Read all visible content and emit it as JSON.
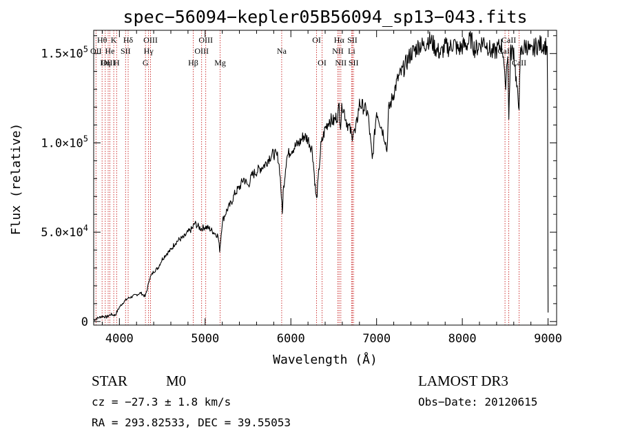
{
  "chart_data": {
    "type": "line",
    "title": "spec−56094−kepler05B56094_sp13−043.fits",
    "xlabel": "Wavelength (Å)",
    "ylabel": "Flux (relative)",
    "xlim": [
      3700,
      9100
    ],
    "ylim": [
      -2000,
      163000
    ],
    "x_ticks": [
      {
        "value": 4000,
        "label": "4000"
      },
      {
        "value": 5000,
        "label": "5000"
      },
      {
        "value": 6000,
        "label": "6000"
      },
      {
        "value": 7000,
        "label": "7000"
      },
      {
        "value": 8000,
        "label": "8000"
      },
      {
        "value": 9000,
        "label": "9000"
      }
    ],
    "y_ticks": [
      {
        "value": 0,
        "mant": "0",
        "exp": ""
      },
      {
        "value": 50000,
        "mant": "5.0×10",
        "exp": "4"
      },
      {
        "value": 100000,
        "mant": "1.0×10",
        "exp": "5"
      },
      {
        "value": 150000,
        "mant": "1.5×10",
        "exp": "5"
      }
    ],
    "series": [
      {
        "name": "flux",
        "color": "#000000",
        "x": [
          3700,
          3750,
          3800,
          3850,
          3900,
          3950,
          4000,
          4050,
          4100,
          4150,
          4200,
          4250,
          4300,
          4330,
          4350,
          4400,
          4450,
          4500,
          4550,
          4600,
          4650,
          4700,
          4750,
          4800,
          4850,
          4880,
          4900,
          4950,
          5000,
          5050,
          5100,
          5150,
          5170,
          5180,
          5200,
          5250,
          5300,
          5350,
          5400,
          5450,
          5500,
          5550,
          5600,
          5650,
          5700,
          5750,
          5800,
          5850,
          5870,
          5890,
          5900,
          5910,
          5950,
          6000,
          6050,
          6100,
          6150,
          6200,
          6250,
          6290,
          6300,
          6350,
          6400,
          6450,
          6500,
          6550,
          6563,
          6580,
          6600,
          6650,
          6700,
          6710,
          6730,
          6750,
          6800,
          6850,
          6900,
          6950,
          7000,
          7050,
          7100,
          7120,
          7140,
          7200,
          7250,
          7300,
          7350,
          7400,
          7450,
          7500,
          7550,
          7600,
          7650,
          7700,
          7750,
          7800,
          7850,
          7900,
          7950,
          8000,
          8050,
          8100,
          8150,
          8200,
          8250,
          8300,
          8350,
          8400,
          8450,
          8480,
          8500,
          8530,
          8542,
          8560,
          8600,
          8640,
          8662,
          8680,
          8700,
          8750,
          8800,
          8850,
          8900,
          8950,
          8990,
          8995,
          9000
        ],
        "y": [
          1000,
          2000,
          3000,
          2500,
          4000,
          3500,
          8000,
          11000,
          13000,
          14000,
          15000,
          16000,
          14000,
          19000,
          24000,
          28000,
          30000,
          35000,
          38000,
          40000,
          44000,
          46000,
          47000,
          50000,
          52000,
          55000,
          54000,
          52000,
          53000,
          52000,
          50000,
          48000,
          40000,
          45000,
          56000,
          62000,
          66000,
          72000,
          75000,
          80000,
          76000,
          82000,
          84000,
          86000,
          88000,
          92000,
          94000,
          92000,
          85000,
          70000,
          60000,
          72000,
          92000,
          96000,
          98000,
          100000,
          104000,
          102000,
          96000,
          72000,
          68000,
          98000,
          108000,
          113000,
          112000,
          116000,
          121000,
          110000,
          122000,
          112000,
          106000,
          103000,
          108000,
          105000,
          122000,
          120000,
          116000,
          90000,
          118000,
          110000,
          102000,
          95000,
          118000,
          128000,
          136000,
          140000,
          145000,
          150000,
          152000,
          155000,
          154000,
          158000,
          156000,
          152000,
          150000,
          154000,
          153000,
          156000,
          152000,
          154000,
          155000,
          158000,
          152000,
          155000,
          157000,
          154000,
          150000,
          152000,
          155000,
          150000,
          130000,
          152000,
          112000,
          150000,
          152000,
          128000,
          122000,
          150000,
          152000,
          155000,
          150000,
          154000,
          155000,
          155000,
          154000,
          125000,
          5000
        ]
      }
    ],
    "spectral_lines": [
      {
        "name": "Hθ",
        "x": 3798,
        "row": 0
      },
      {
        "name": "OII",
        "x": 3727,
        "row": 1
      },
      {
        "name": "OIII",
        "x": 3869,
        "row": 2
      },
      {
        "name": "K",
        "x": 3934,
        "row": 0
      },
      {
        "name": "He",
        "x": 3889,
        "row": 1
      },
      {
        "name": "Hη",
        "x": 3835,
        "row": 2
      },
      {
        "name": "Hδ",
        "x": 4102,
        "row": 0
      },
      {
        "name": "SII",
        "x": 4072,
        "row": 1
      },
      {
        "name": "H",
        "x": 3968,
        "row": 2
      },
      {
        "name": "OIII",
        "x": 4363,
        "row": 0
      },
      {
        "name": "Hγ",
        "x": 4340,
        "row": 1
      },
      {
        "name": "G",
        "x": 4304,
        "row": 2
      },
      {
        "name": "OIII",
        "x": 5007,
        "row": 0
      },
      {
        "name": "OIII",
        "x": 4959,
        "row": 1
      },
      {
        "name": "Hβ",
        "x": 4861,
        "row": 2
      },
      {
        "name": "Mg",
        "x": 5175,
        "row": 2
      },
      {
        "name": "Na",
        "x": 5893,
        "row": 1
      },
      {
        "name": "OI",
        "x": 6300,
        "row": 0
      },
      {
        "name": "OI",
        "x": 6364,
        "row": 2
      },
      {
        "name": "Hα",
        "x": 6563,
        "row": 0
      },
      {
        "name": "NII",
        "x": 6548,
        "row": 1
      },
      {
        "name": "NII",
        "x": 6583,
        "row": 2
      },
      {
        "name": "SII",
        "x": 6717,
        "row": 0
      },
      {
        "name": "Li",
        "x": 6708,
        "row": 1
      },
      {
        "name": "SII",
        "x": 6731,
        "row": 2
      },
      {
        "name": "CaII",
        "x": 8542,
        "row": 0
      },
      {
        "name": "CaII",
        "x": 8498,
        "row": 1
      },
      {
        "name": "CaII",
        "x": 8662,
        "row": 2
      }
    ],
    "line_marker_color": "#c81e1e"
  },
  "info": {
    "object_class": "STAR",
    "subclass": "M0",
    "survey": "LAMOST DR3",
    "redshift": "cz = −27.3 ± 1.8 km/s",
    "obs_date": "Obs−Date: 20120615",
    "coordinates": "RA = 293.82533, DEC =  39.55053"
  }
}
